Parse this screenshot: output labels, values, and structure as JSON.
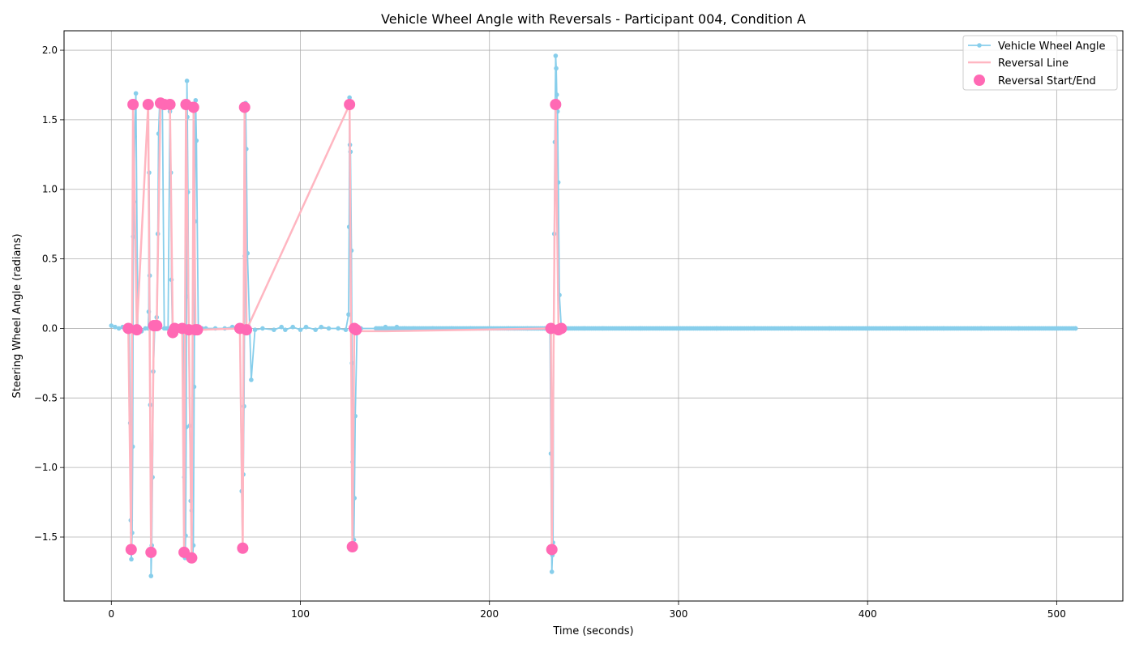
{
  "chart_data": {
    "type": "line",
    "title": "Vehicle Wheel Angle with Reversals - Participant 004, Condition A",
    "xlabel": "Time (seconds)",
    "ylabel": "Steering Wheel Angle (radians)",
    "xlim": [
      -25,
      535
    ],
    "ylim": [
      -1.96,
      2.14
    ],
    "x_ticks": [
      0,
      100,
      200,
      300,
      400,
      500
    ],
    "y_ticks": [
      -1.5,
      -1.0,
      -0.5,
      0.0,
      0.5,
      1.0,
      1.5,
      2.0
    ],
    "x_tick_labels": [
      "0",
      "100",
      "200",
      "300",
      "400",
      "500"
    ],
    "y_tick_labels": [
      "−1.5",
      "−1.0",
      "−0.5",
      "0.0",
      "0.5",
      "1.0",
      "1.5",
      "2.0"
    ],
    "grid": true,
    "legend": {
      "position": "top-right",
      "entries": [
        "Vehicle Wheel Angle",
        "Reversal Line",
        "Reversal Start/End"
      ]
    },
    "colors": {
      "wheel_angle": "#87ceeb",
      "reversal_line": "#ffb6c1",
      "reversal_marker": "#ff69b4"
    },
    "series": [
      {
        "name": "Vehicle Wheel Angle",
        "style": "line-with-points",
        "x": [
          0,
          2,
          4,
          6,
          8,
          9.5,
          10,
          10.3,
          10.6,
          11,
          11.3,
          11.6,
          12,
          12.4,
          13,
          14,
          16,
          18,
          19.5,
          19.8,
          20,
          20.3,
          20.6,
          21,
          21.4,
          21.8,
          22.2,
          23,
          24,
          24.6,
          25,
          25.5,
          26,
          27,
          28,
          29,
          30,
          31,
          31.5,
          31.8,
          32.3,
          33,
          34,
          36,
          38,
          38.6,
          39,
          39.3,
          39.6,
          39.8,
          40,
          40.2,
          40.5,
          41,
          41.5,
          42,
          42.5,
          43,
          43.4,
          43.8,
          44.2,
          44.6,
          45,
          46,
          48,
          50,
          55,
          60,
          64,
          66,
          67,
          68,
          69,
          69.4,
          69.8,
          70.2,
          70.6,
          71,
          71.4,
          72,
          74,
          76,
          80,
          86,
          90,
          92,
          96,
          100,
          103,
          108,
          111,
          115,
          120,
          124,
          125.5,
          125.8,
          126,
          126.2,
          126.5,
          127,
          127.3,
          127.6,
          128,
          128.3,
          128.6,
          129,
          130,
          132,
          140,
          145,
          148,
          151,
          155,
          160,
          170,
          180,
          190,
          200,
          210,
          220,
          230,
          232,
          232.5,
          233,
          233.3,
          233.6,
          234,
          234.3,
          234.6,
          235,
          235.3,
          235.6,
          236,
          236.4,
          237,
          238,
          240,
          250,
          260,
          280,
          300,
          320,
          340,
          360,
          380,
          400,
          420,
          440,
          460,
          480,
          500,
          510
        ],
        "y": [
          0.02,
          0.01,
          0.0,
          0.01,
          0.0,
          0.0,
          -0.68,
          -1.38,
          -1.66,
          -1.47,
          -0.85,
          0.66,
          0.91,
          1.38,
          1.69,
          -0.01,
          -0.02,
          0.0,
          0.0,
          0.12,
          1.12,
          0.38,
          -0.55,
          -1.78,
          -1.56,
          -1.07,
          -0.31,
          0.02,
          0.08,
          0.68,
          1.4,
          1.6,
          1.62,
          1.61,
          0.0,
          0.0,
          0.0,
          1.56,
          1.12,
          0.35,
          0.0,
          -0.03,
          0.0,
          0.0,
          0.0,
          -1.07,
          -1.65,
          -1.49,
          -0.71,
          0.23,
          1.78,
          1.52,
          0.98,
          0.0,
          -0.7,
          -1.24,
          -1.31,
          -1.64,
          -1.56,
          -0.42,
          0.77,
          1.64,
          1.35,
          0.0,
          0.0,
          0.0,
          0.0,
          0.0,
          0.01,
          0.0,
          -0.01,
          0.0,
          -1.17,
          -1.58,
          -1.05,
          -0.56,
          0.52,
          1.62,
          1.29,
          0.54,
          -0.37,
          -0.01,
          0.0,
          -0.01,
          0.01,
          -0.01,
          0.01,
          -0.01,
          0.01,
          -0.01,
          0.01,
          0.0,
          0.0,
          -0.01,
          0.1,
          0.73,
          1.66,
          1.32,
          1.27,
          0.56,
          -0.25,
          -0.96,
          -1.58,
          -1.52,
          -1.22,
          -0.63,
          0.01,
          0.0,
          0.0,
          0.01,
          -0.01,
          0.01,
          0.0,
          0.0,
          0.0,
          0.0,
          0.0,
          0.0,
          0.0,
          0.0,
          0.0,
          0.0,
          -0.9,
          -1.75,
          -1.63,
          -1.54,
          0.0,
          0.68,
          1.34,
          1.96,
          1.87,
          1.68,
          1.56,
          1.05,
          0.24,
          0.0,
          0.0,
          0.0,
          0.0,
          0.0,
          0.0,
          0.0,
          0.0,
          0.0,
          0.0,
          0.0,
          0.0,
          0.0,
          0.0,
          0.0,
          0.0,
          0.0
        ]
      },
      {
        "name": "Reversal Line",
        "style": "line",
        "x": [
          9,
          10.5,
          11.5,
          13.5,
          19.5,
          21,
          22.5,
          24,
          26,
          28,
          31,
          32.5,
          33.5,
          37.5,
          38.5,
          39.5,
          41,
          42.5,
          43.5,
          44.5,
          45.5,
          68,
          69.5,
          70.5,
          71.5,
          126,
          127.5,
          128.5,
          129.5,
          130.5,
          145,
          232.5,
          233,
          235,
          236.5,
          238
        ],
        "y": [
          0.0,
          -1.59,
          1.61,
          -0.01,
          1.61,
          -1.61,
          0.02,
          0.02,
          1.62,
          1.61,
          1.61,
          -0.03,
          0.0,
          0.0,
          -1.61,
          1.61,
          -0.01,
          -1.65,
          1.59,
          -0.01,
          -0.01,
          0.0,
          -1.58,
          1.59,
          -0.01,
          1.61,
          -1.57,
          0.0,
          -0.01,
          -0.02,
          -0.02,
          0.0,
          -1.59,
          1.61,
          -0.01,
          0.0
        ]
      }
    ],
    "reversal_points": {
      "name": "Reversal Start/End",
      "x": [
        9,
        10.5,
        11.5,
        13.5,
        19.5,
        21,
        22.5,
        24,
        26,
        28,
        31,
        32.5,
        33.5,
        37.5,
        38.5,
        39.5,
        41,
        42.5,
        43.5,
        44.5,
        45.5,
        68,
        69.5,
        70.5,
        71.5,
        126,
        127.5,
        128.5,
        129.5,
        233,
        232.5,
        235,
        236.5,
        238
      ],
      "y": [
        0.0,
        -1.59,
        1.61,
        -0.01,
        1.61,
        -1.61,
        0.02,
        0.02,
        1.62,
        1.61,
        1.61,
        -0.03,
        0.0,
        0.0,
        -1.61,
        1.61,
        -0.01,
        -1.65,
        1.59,
        -0.01,
        -0.01,
        0.0,
        -1.58,
        1.59,
        -0.01,
        1.61,
        -1.57,
        0.0,
        -0.01,
        -1.59,
        0.0,
        1.61,
        -0.01,
        0.0
      ]
    }
  }
}
